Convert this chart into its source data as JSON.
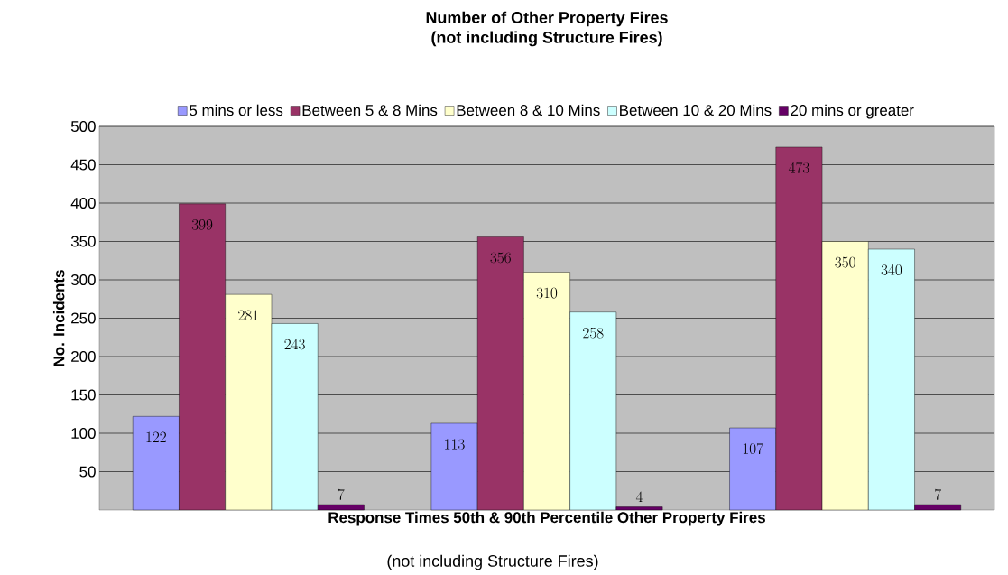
{
  "chart_data": {
    "type": "bar",
    "title": "Number of Other Property Fires",
    "subtitle": "(not including Structure Fires)",
    "xlabel": "Response Times 50th & 90th Percentile Other Property Fires",
    "ylabel": "No. Incidents",
    "annotations": [
      "(not including Structure Fires)"
    ],
    "categories": [
      null,
      null,
      null
    ],
    "series": [
      {
        "name": "5 mins or less",
        "color": "#9999ff",
        "values": [
          122,
          113,
          107
        ]
      },
      {
        "name": "Between 5 & 8 Mins",
        "color": "#993366",
        "values": [
          399,
          356,
          473
        ]
      },
      {
        "name": "Between 8 & 10 Mins",
        "color": "#ffffcc",
        "values": [
          281,
          310,
          350
        ]
      },
      {
        "name": "Between 10 & 20 Mins",
        "color": "#ccffff",
        "values": [
          243,
          258,
          340
        ]
      },
      {
        "name": "20 mins or greater",
        "color": "#660066",
        "values": [
          7,
          4,
          7
        ]
      }
    ],
    "ylim": [
      0,
      500
    ],
    "yticks": [
      50,
      100,
      150,
      200,
      250,
      300,
      350,
      400,
      450,
      500
    ],
    "grid": "y",
    "legend": "top",
    "data_labels": true
  }
}
